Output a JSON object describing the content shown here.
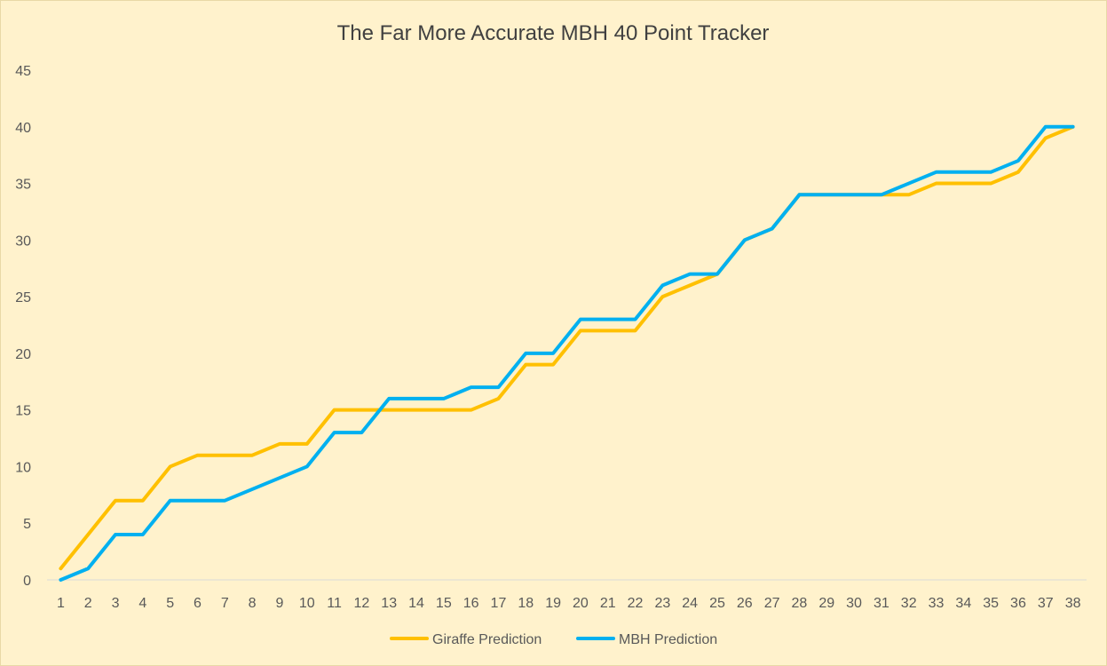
{
  "chart_data": {
    "type": "line",
    "title": "The Far More Accurate MBH 40 Point Tracker",
    "xlabel": "",
    "ylabel": "",
    "x": [
      1,
      2,
      3,
      4,
      5,
      6,
      7,
      8,
      9,
      10,
      11,
      12,
      13,
      14,
      15,
      16,
      17,
      18,
      19,
      20,
      21,
      22,
      23,
      24,
      25,
      26,
      27,
      28,
      29,
      30,
      31,
      32,
      33,
      34,
      35,
      36,
      37,
      38
    ],
    "ylim": [
      0,
      45
    ],
    "yticks": [
      0,
      5,
      10,
      15,
      20,
      25,
      30,
      35,
      40,
      45
    ],
    "grid": false,
    "legend_position": "bottom",
    "series": [
      {
        "name": "Giraffe Prediction",
        "color": "#ffc000",
        "values": [
          1,
          4,
          7,
          7,
          10,
          11,
          11,
          11,
          12,
          12,
          15,
          15,
          15,
          15,
          15,
          15,
          16,
          19,
          19,
          22,
          22,
          22,
          25,
          26,
          27,
          30,
          31,
          34,
          34,
          34,
          34,
          34,
          35,
          35,
          35,
          36,
          39,
          40
        ]
      },
      {
        "name": "MBH Prediction",
        "color": "#00b0f0",
        "values": [
          0,
          1,
          4,
          4,
          7,
          7,
          7,
          8,
          9,
          10,
          13,
          13,
          16,
          16,
          16,
          17,
          17,
          20,
          20,
          23,
          23,
          23,
          26,
          27,
          27,
          30,
          31,
          34,
          34,
          34,
          34,
          35,
          36,
          36,
          36,
          37,
          40,
          40
        ]
      }
    ]
  }
}
